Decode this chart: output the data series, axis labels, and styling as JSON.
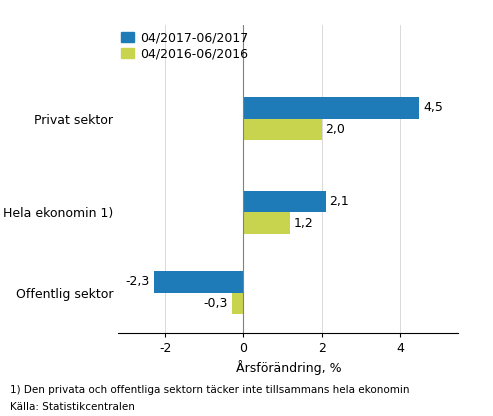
{
  "categories": [
    "Offentlig sektor",
    "Hela ekonomin 1)",
    "Privat sektor"
  ],
  "series_2017": [
    -2.3,
    2.1,
    4.5
  ],
  "series_2016": [
    -0.3,
    1.2,
    2.0
  ],
  "color_2017": "#1f7bb8",
  "color_2016": "#c8d44e",
  "legend_2017": "04/2017-06/2017",
  "legend_2016": "04/2016-06/2016",
  "xlabel": "Årsförändring, %",
  "xlim": [
    -3.2,
    5.5
  ],
  "xticks": [
    -2,
    0,
    2,
    4
  ],
  "footnote1": "1) Den privata och offentliga sektorn täcker inte tillsammans hela ekonomin",
  "footnote2": "Källa: Statistikcentralen",
  "bar_height": 0.32,
  "label_fontsize": 9,
  "tick_fontsize": 9
}
